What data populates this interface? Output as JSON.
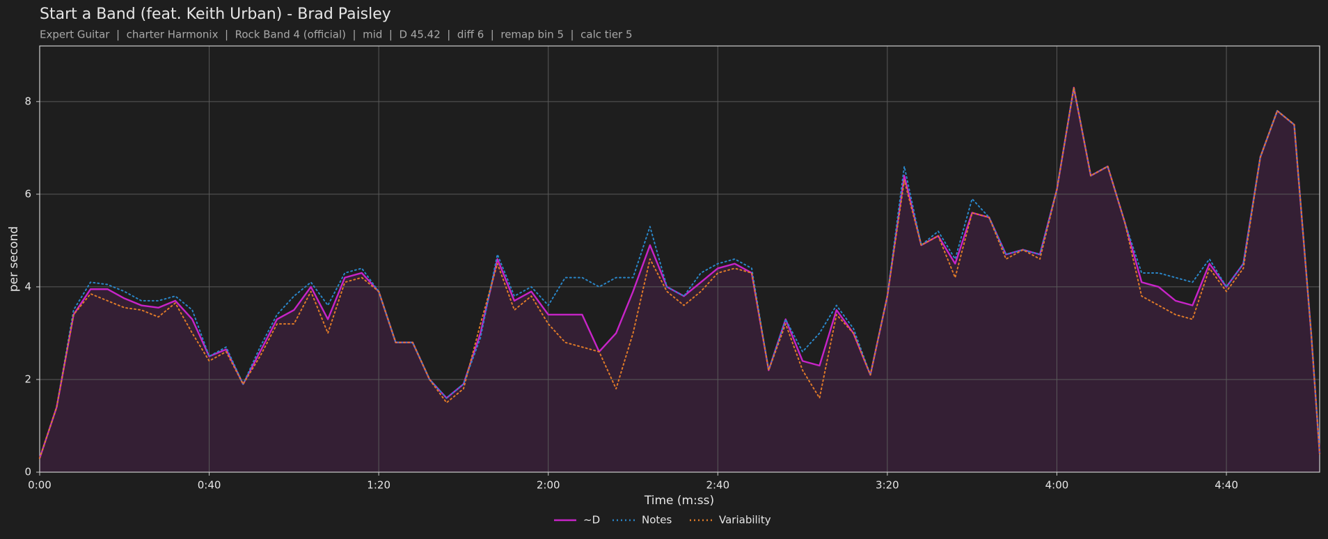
{
  "chart_data": {
    "type": "line",
    "title": "Start a Band (feat. Keith Urban) - Brad Paisley",
    "subtitle": "Expert Guitar  |  charter Harmonix  |  Rock Band 4 (official)  |  mid  |  D 45.42  |  diff 6  |  remap bin 5  |  calc tier 5",
    "xlabel": "Time (m:ss)",
    "ylabel": "per second",
    "x": [
      0,
      4,
      8,
      12,
      16,
      20,
      24,
      28,
      32,
      36,
      40,
      44,
      48,
      52,
      56,
      60,
      64,
      68,
      72,
      76,
      80,
      84,
      88,
      92,
      96,
      100,
      104,
      108,
      112,
      116,
      120,
      124,
      128,
      132,
      136,
      140,
      144,
      148,
      152,
      156,
      160,
      164,
      168,
      172,
      176,
      180,
      184,
      188,
      192,
      196,
      200,
      204,
      208,
      212,
      216,
      220,
      224,
      228,
      232,
      236,
      240,
      244,
      248,
      252,
      256,
      260,
      264,
      268,
      272,
      276,
      280,
      284,
      288,
      292,
      296,
      300,
      302
    ],
    "series": [
      {
        "name": "~D",
        "color": "#c824c8",
        "dash": "solid",
        "values": [
          0.3,
          1.4,
          3.4,
          3.95,
          3.95,
          3.75,
          3.6,
          3.55,
          3.7,
          3.3,
          2.5,
          2.65,
          1.9,
          2.6,
          3.3,
          3.5,
          4.0,
          3.3,
          4.2,
          4.3,
          3.9,
          2.8,
          2.8,
          2.0,
          1.6,
          1.9,
          3.0,
          4.6,
          3.7,
          3.9,
          3.4,
          3.4,
          3.4,
          2.6,
          3.0,
          3.9,
          4.9,
          4.0,
          3.8,
          4.1,
          4.4,
          4.5,
          4.3,
          2.2,
          3.3,
          2.4,
          2.3,
          3.5,
          3.0,
          2.1,
          3.8,
          6.4,
          4.9,
          5.1,
          4.5,
          5.6,
          5.5,
          4.7,
          4.8,
          4.7,
          6.1,
          8.3,
          6.4,
          6.6,
          5.4,
          4.1,
          4.0,
          3.7,
          3.6,
          4.5,
          4.0,
          4.5,
          6.8,
          7.8,
          7.5,
          3.0,
          0.4
        ]
      },
      {
        "name": "Notes",
        "color": "#2a86c8",
        "dash": "dotted",
        "values": [
          0.3,
          1.4,
          3.5,
          4.1,
          4.05,
          3.9,
          3.7,
          3.7,
          3.8,
          3.5,
          2.5,
          2.7,
          1.9,
          2.7,
          3.4,
          3.8,
          4.1,
          3.6,
          4.3,
          4.4,
          3.9,
          2.8,
          2.8,
          2.0,
          1.6,
          1.9,
          2.9,
          4.7,
          3.8,
          4.0,
          3.6,
          4.2,
          4.2,
          4.0,
          4.2,
          4.2,
          5.3,
          4.0,
          3.8,
          4.3,
          4.5,
          4.6,
          4.4,
          2.2,
          3.3,
          2.6,
          3.0,
          3.6,
          3.1,
          2.1,
          3.8,
          6.6,
          4.9,
          5.2,
          4.6,
          5.9,
          5.5,
          4.7,
          4.8,
          4.7,
          6.1,
          8.3,
          6.4,
          6.6,
          5.4,
          4.3,
          4.3,
          4.2,
          4.1,
          4.6,
          4.0,
          4.5,
          6.8,
          7.8,
          7.5,
          3.0,
          0.4
        ]
      },
      {
        "name": "Variability",
        "color": "#e07b28",
        "dash": "dotted",
        "values": [
          0.3,
          1.4,
          3.4,
          3.85,
          3.7,
          3.55,
          3.5,
          3.35,
          3.65,
          3.0,
          2.4,
          2.6,
          1.9,
          2.5,
          3.2,
          3.2,
          3.9,
          3.0,
          4.1,
          4.2,
          3.9,
          2.8,
          2.8,
          2.0,
          1.5,
          1.8,
          3.2,
          4.5,
          3.5,
          3.8,
          3.2,
          2.8,
          2.7,
          2.6,
          1.8,
          3.0,
          4.6,
          3.9,
          3.6,
          3.9,
          4.3,
          4.4,
          4.3,
          2.2,
          3.2,
          2.2,
          1.6,
          3.4,
          3.0,
          2.1,
          3.8,
          6.3,
          4.9,
          5.1,
          4.2,
          5.6,
          5.5,
          4.6,
          4.8,
          4.6,
          6.1,
          8.3,
          6.4,
          6.6,
          5.4,
          3.8,
          3.6,
          3.4,
          3.3,
          4.4,
          3.9,
          4.4,
          6.8,
          7.8,
          7.5,
          3.0,
          0.4
        ]
      }
    ],
    "xlim": [
      0,
      302
    ],
    "ylim": [
      0,
      9.2
    ],
    "xticks": [
      {
        "value": 0,
        "label": "0:00"
      },
      {
        "value": 40,
        "label": "0:40"
      },
      {
        "value": 80,
        "label": "1:20"
      },
      {
        "value": 120,
        "label": "2:00"
      },
      {
        "value": 160,
        "label": "2:40"
      },
      {
        "value": 200,
        "label": "3:20"
      },
      {
        "value": 240,
        "label": "4:00"
      },
      {
        "value": 280,
        "label": "4:40"
      }
    ],
    "yticks": [
      0,
      2,
      4,
      6,
      8
    ],
    "grid": true,
    "legend": "bottom"
  }
}
